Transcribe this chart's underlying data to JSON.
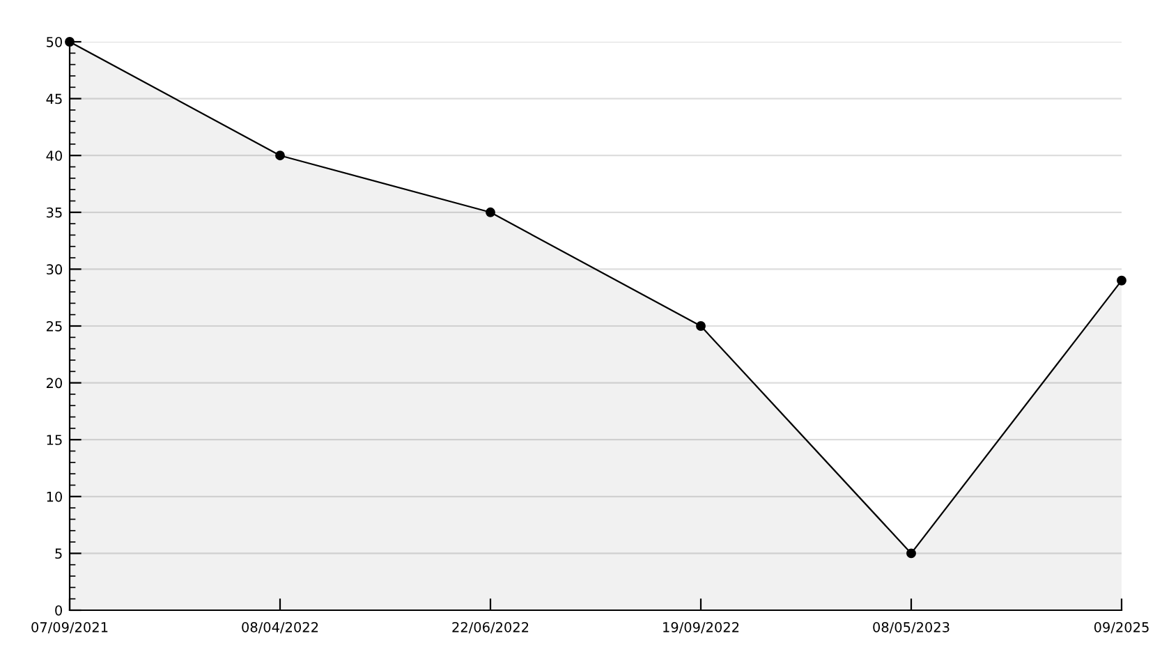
{
  "chart_data": {
    "type": "area",
    "categories": [
      "07/09/2021",
      "08/04/2022",
      "22/06/2022",
      "19/09/2022",
      "08/05/2023",
      "09/2025"
    ],
    "series": [
      {
        "color": "#000000",
        "values": [
          50,
          40,
          35,
          25,
          5,
          29
        ]
      }
    ],
    "ylim": [
      0,
      50
    ],
    "yticks": [
      0,
      5,
      10,
      15,
      20,
      25,
      30,
      35,
      40,
      45,
      50
    ],
    "grid": "y",
    "marker": "circle",
    "line_style": "solid"
  }
}
